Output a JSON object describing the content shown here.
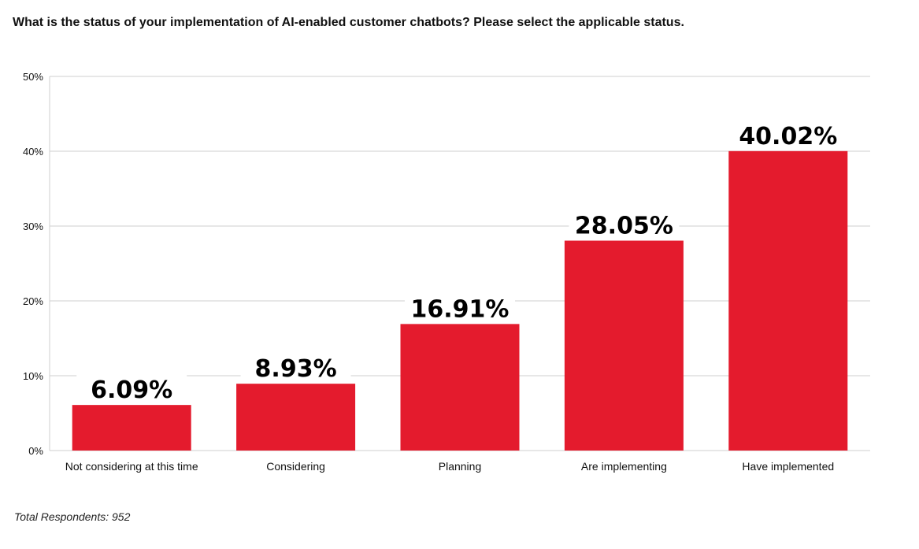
{
  "chart_data": {
    "type": "bar",
    "title": "What is the status of your implementation of AI-enabled customer chatbots? Please select the applicable status.",
    "categories": [
      "Not considering at this time",
      "Considering",
      "Planning",
      "Are implementing",
      "Have implemented"
    ],
    "values": [
      6.09,
      8.93,
      16.91,
      28.05,
      40.02
    ],
    "data_labels": [
      "6.09%",
      "8.93%",
      "16.91%",
      "28.05%",
      "40.02%"
    ],
    "ylim": [
      0,
      50
    ],
    "yticks": [
      "0%",
      "10%",
      "20%",
      "30%",
      "40%",
      "50%"
    ],
    "xlabel": "",
    "ylabel": "",
    "grid": true,
    "bar_color": "#e41b2d",
    "footnote": "Total Respondents: 952"
  }
}
